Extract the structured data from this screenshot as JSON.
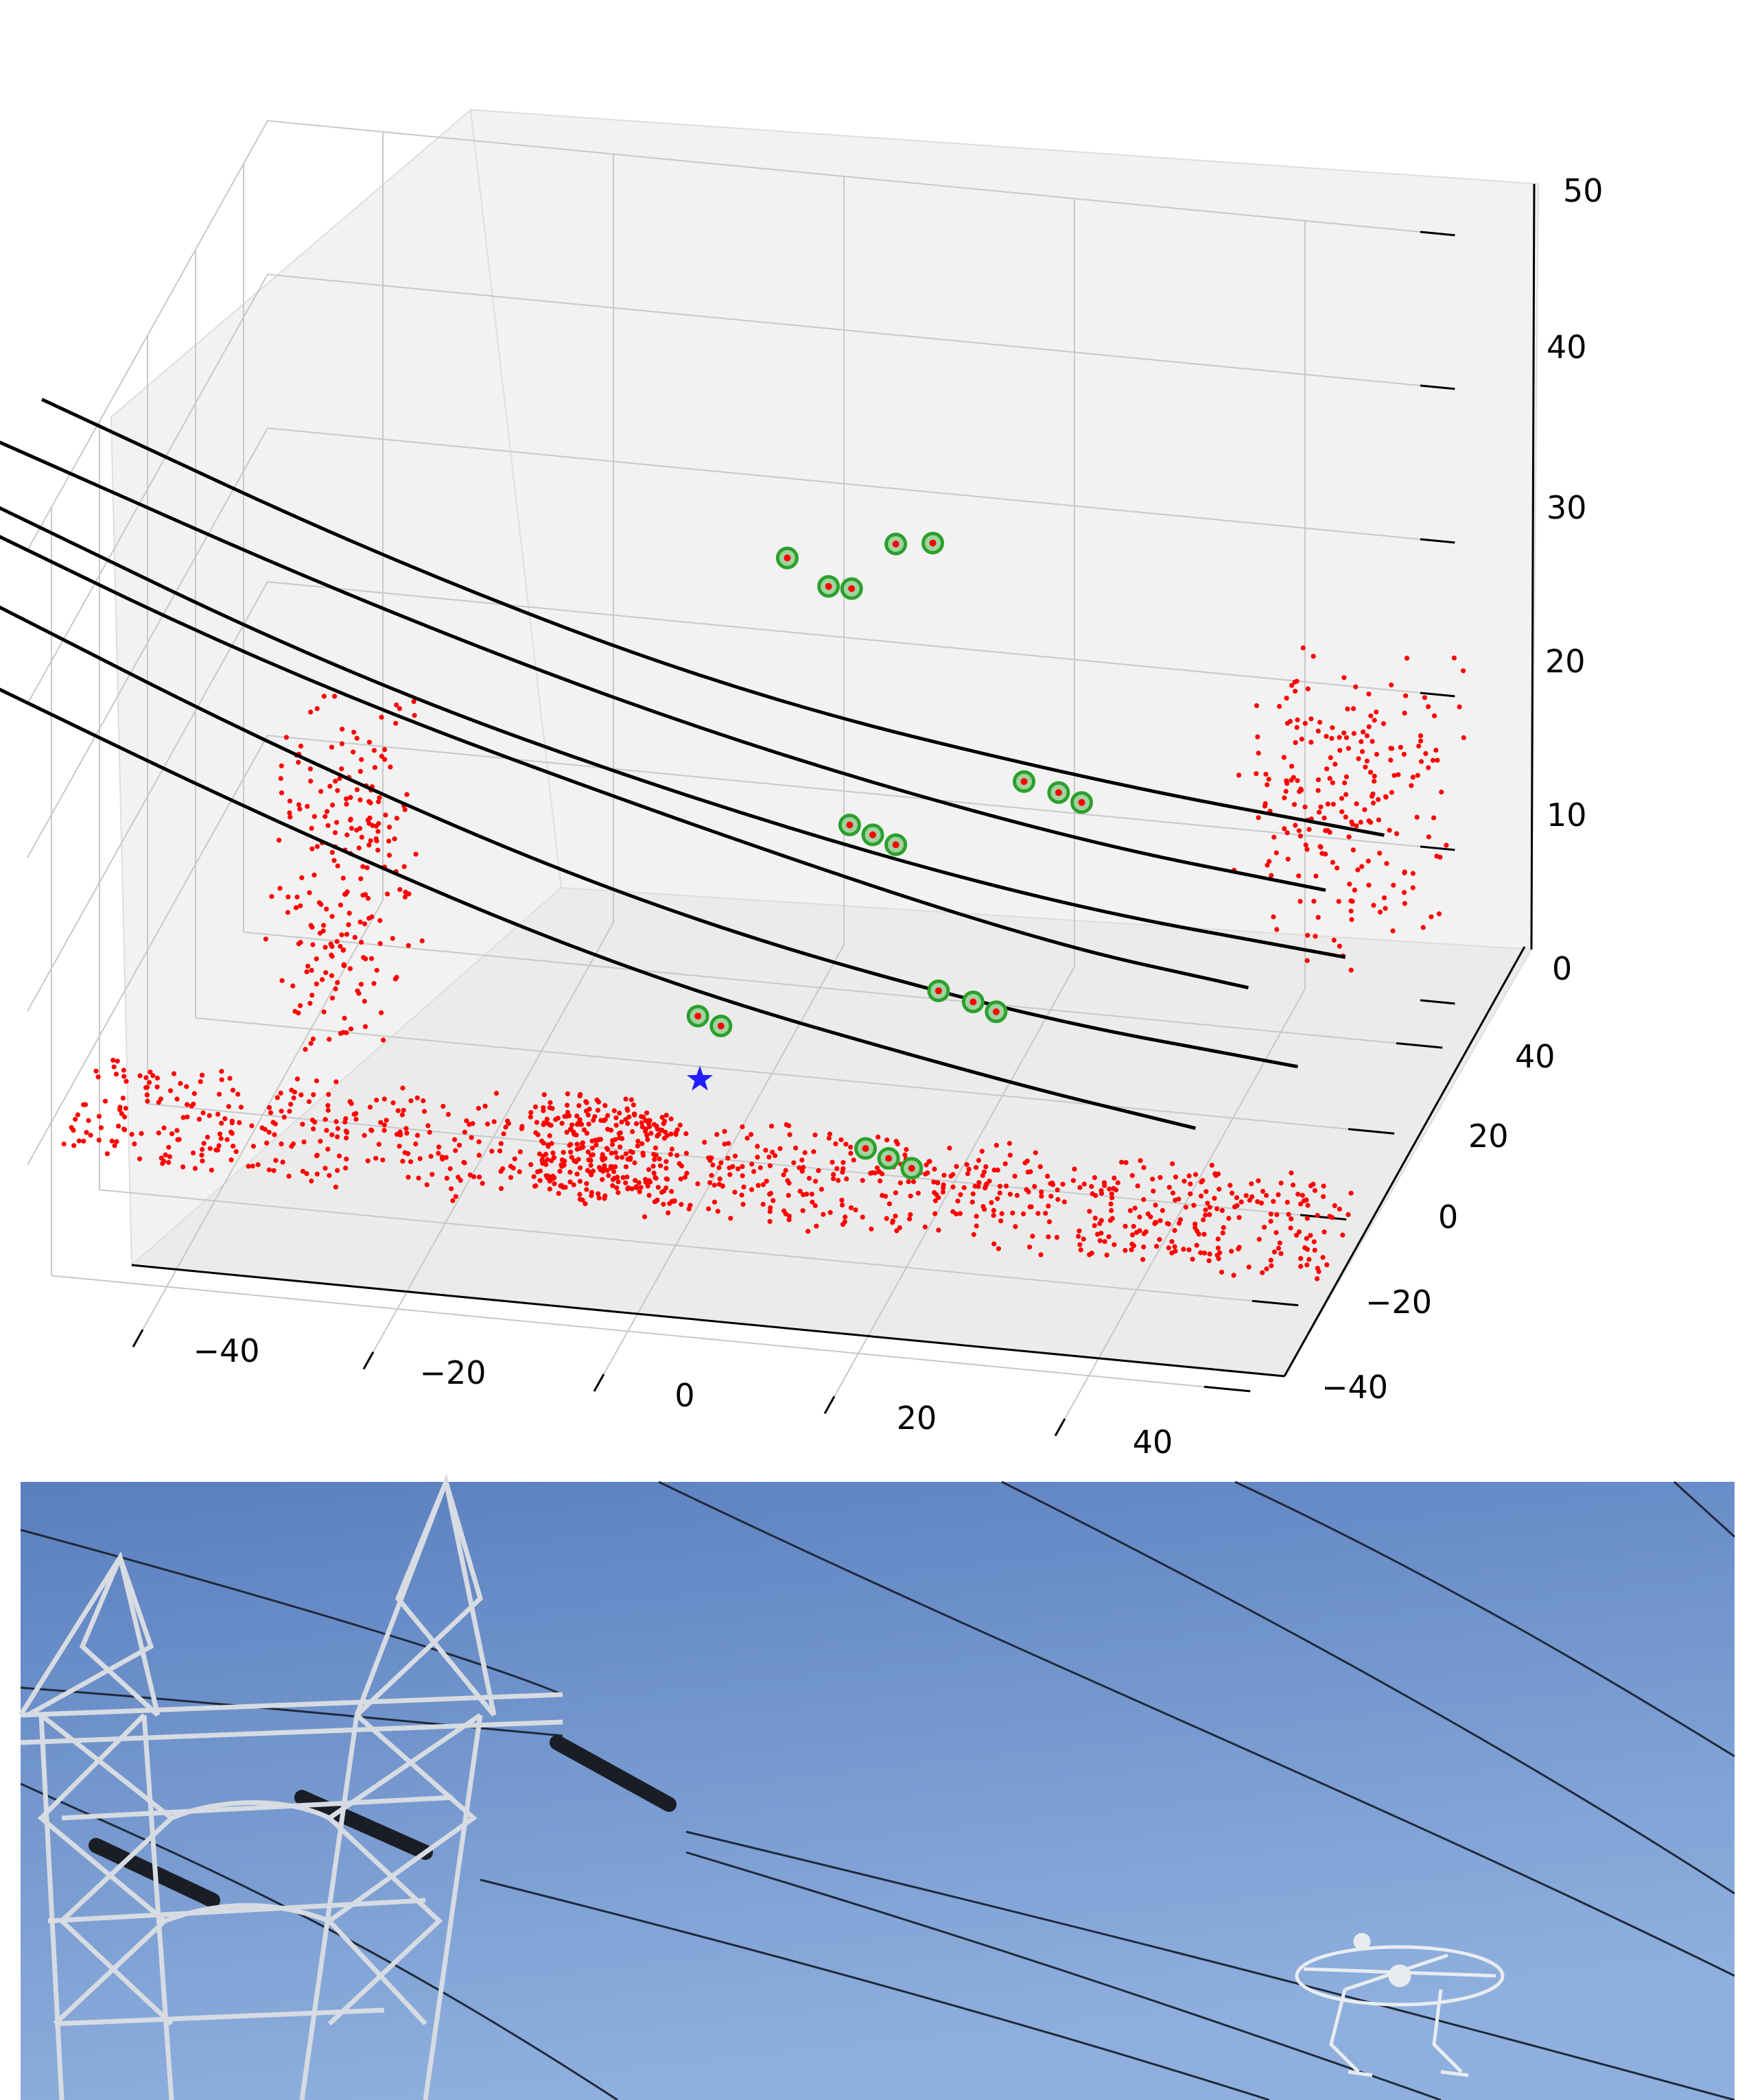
{
  "chart_data": {
    "type": "scatter3d",
    "x_ticks": [
      "−40",
      "−20",
      "0",
      "20",
      "40"
    ],
    "y_ticks": [
      "−40",
      "−20",
      "0",
      "20",
      "40"
    ],
    "z_ticks": [
      "0",
      "10",
      "20",
      "30",
      "40",
      "50"
    ],
    "xlim": [
      -50,
      50
    ],
    "ylim": [
      -50,
      50
    ],
    "zlim": [
      0,
      50
    ],
    "grid": true,
    "colors": {
      "point_cloud": "#ff0000",
      "detected_highlight": "#2ca02c",
      "fitted_curves": "#000000",
      "marker": "#1f1fff",
      "pane": "#f2f2f2",
      "grid": "#c8c8c8"
    },
    "series": [
      {
        "kind": "fitted_catenary_curves",
        "curves": [
          [
            [
              -60,
              4,
              44
            ],
            [
              -30,
              6,
              35
            ],
            [
              0,
              8,
              28
            ],
            [
              30,
              10,
              24
            ],
            [
              55,
              11,
              22
            ]
          ],
          [
            [
              -62,
              -6,
              44
            ],
            [
              -30,
              -4,
              35
            ],
            [
              0,
              -2,
              28
            ],
            [
              30,
              0,
              23
            ],
            [
              52,
              1,
              21
            ]
          ],
          [
            [
              -62,
              -18,
              44
            ],
            [
              -30,
              -16,
              34
            ],
            [
              0,
              -13,
              27
            ],
            [
              30,
              -11,
              22
            ],
            [
              56,
              -10,
              20
            ]
          ],
          [
            [
              -66,
              -20,
              44
            ],
            [
              -34,
              -18,
              34
            ],
            [
              0,
              -15,
              26
            ],
            [
              30,
              -13,
              20
            ],
            [
              48,
              -12,
              18
            ]
          ],
          [
            [
              -60,
              -32,
              42
            ],
            [
              -30,
              -30,
              32
            ],
            [
              0,
              -28,
              24
            ],
            [
              30,
              -26,
              19
            ],
            [
              55,
              -25,
              17
            ]
          ],
          [
            [
              -62,
              -40,
              40
            ],
            [
              -30,
              -38,
              30
            ],
            [
              0,
              -36,
              22
            ],
            [
              30,
              -34,
              17
            ],
            [
              48,
              -34,
              15
            ]
          ]
        ]
      },
      {
        "kind": "detected_wire_points",
        "points": [
          [
            25,
            5,
            25
          ],
          [
            28,
            5,
            24.5
          ],
          [
            30,
            5,
            24
          ],
          [
            13,
            -10,
            25.5
          ],
          [
            15,
            -10,
            25
          ],
          [
            17,
            -10,
            24.5
          ],
          [
            23,
            -21,
            18.5
          ],
          [
            26,
            -21,
            18
          ],
          [
            28,
            -21,
            17.5
          ],
          [
            4,
            -30,
            18
          ],
          [
            6,
            -30,
            17.5
          ],
          [
            20,
            -37,
            12.5
          ],
          [
            22,
            -37,
            12
          ],
          [
            24,
            -37,
            11.5
          ]
        ]
      },
      {
        "kind": "detected_tower_points",
        "points": [
          [
            3,
            12,
            36
          ],
          [
            7,
            10,
            35
          ],
          [
            9,
            10,
            35
          ],
          [
            12,
            14,
            37
          ],
          [
            15,
            15,
            37
          ]
        ]
      },
      {
        "kind": "position_marker",
        "points": [
          [
            0,
            -10,
            8
          ]
        ]
      },
      {
        "kind": "raw_point_cloud",
        "ground_strip": {
          "x_range": [
            -55,
            55
          ],
          "y_range": [
            -15,
            5
          ],
          "z": 0
        },
        "clusters": [
          {
            "name": "vehicle",
            "x_range": [
              -14,
              -2
            ],
            "y_range": [
              -12,
              -8
            ],
            "z_range": [
              0,
              6
            ]
          },
          {
            "name": "tower-left",
            "x_range": [
              -42,
              -32
            ],
            "y_range": [
              10,
              30
            ],
            "z_range": [
              0,
              20
            ]
          },
          {
            "name": "right-cluster",
            "x_range": [
              40,
              55
            ],
            "y_range": [
              20,
              45
            ],
            "z_range": [
              10,
              25
            ]
          }
        ]
      }
    ]
  },
  "photo": {
    "description_icons": [
      "transmission-tower",
      "power-lines",
      "drone"
    ],
    "sky_color_top": "#5a7fbf",
    "sky_color_bottom": "#8fb0de"
  }
}
